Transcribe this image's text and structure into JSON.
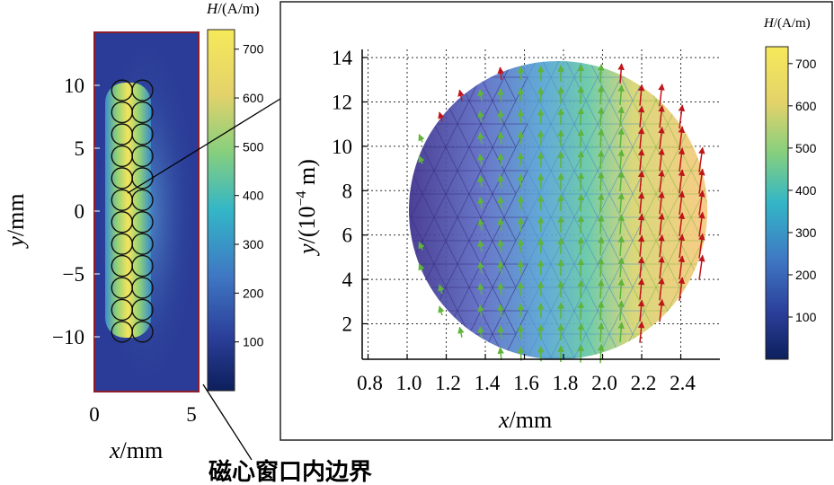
{
  "chart_data": [
    {
      "type": "heatmap",
      "panel": "overview",
      "xlabel": "x/mm",
      "ylabel": "y/mm",
      "x_ticks": [
        "0",
        "5"
      ],
      "y_ticks": [
        "10",
        "5",
        "0",
        "−5",
        "−10"
      ],
      "xlim": [
        0,
        5
      ],
      "ylim": [
        -14,
        14
      ],
      "colorbar": {
        "label": "H/(A/m)",
        "ticks": [
          "100",
          "200",
          "300",
          "400",
          "500",
          "600",
          "700"
        ],
        "range": [
          0,
          740
        ]
      },
      "conductors": {
        "columns_x_mm": [
          1.1,
          2.2
        ],
        "rows": 12,
        "y_range_mm": [
          -9.6,
          9.6
        ],
        "radius_mm": 0.82
      },
      "field_high_region_x_mm": [
        0.9,
        2.5
      ],
      "annotation": "磁心窗口内边界"
    },
    {
      "type": "heatmap",
      "panel": "zoom",
      "xlabel": "x/mm",
      "ylabel": "y/(10⁻⁴ m)",
      "x_ticks": [
        "0.8",
        "1.0",
        "1.2",
        "1.4",
        "1.6",
        "1.8",
        "2.0",
        "2.2",
        "2.4"
      ],
      "y_ticks": [
        "14",
        "12",
        "10",
        "8",
        "6",
        "4",
        "2"
      ],
      "xlim": [
        0.77,
        2.5
      ],
      "ylim": [
        0.4,
        14.6
      ],
      "grid": "dotted",
      "colorbar": {
        "label": "H/(A/m)",
        "ticks": [
          "100",
          "200",
          "300",
          "400",
          "500",
          "600",
          "700"
        ],
        "range": [
          0,
          740
        ]
      },
      "conductor_circle": {
        "cx_mm": 1.68,
        "cy_1e4m": 7.2,
        "r_mm": 0.66
      },
      "field_gradient_x_mm": {
        "low": 1.02,
        "high": 2.34
      },
      "arrows": "field direction vectors, green (low) to red (high), pointing upward"
    }
  ],
  "caption": "磁心窗口内边界",
  "labels": {
    "left_x": "x",
    "left_x_unit": "/mm",
    "left_y": "y",
    "left_y_unit": "/mm",
    "right_x": "x",
    "right_x_unit": "/mm",
    "right_y": "y",
    "right_y_unit": "/(10",
    "right_y_exp": "−4",
    "right_y_tail": " m)",
    "cb_H": "H",
    "cb_unit": "/(A/m)"
  }
}
